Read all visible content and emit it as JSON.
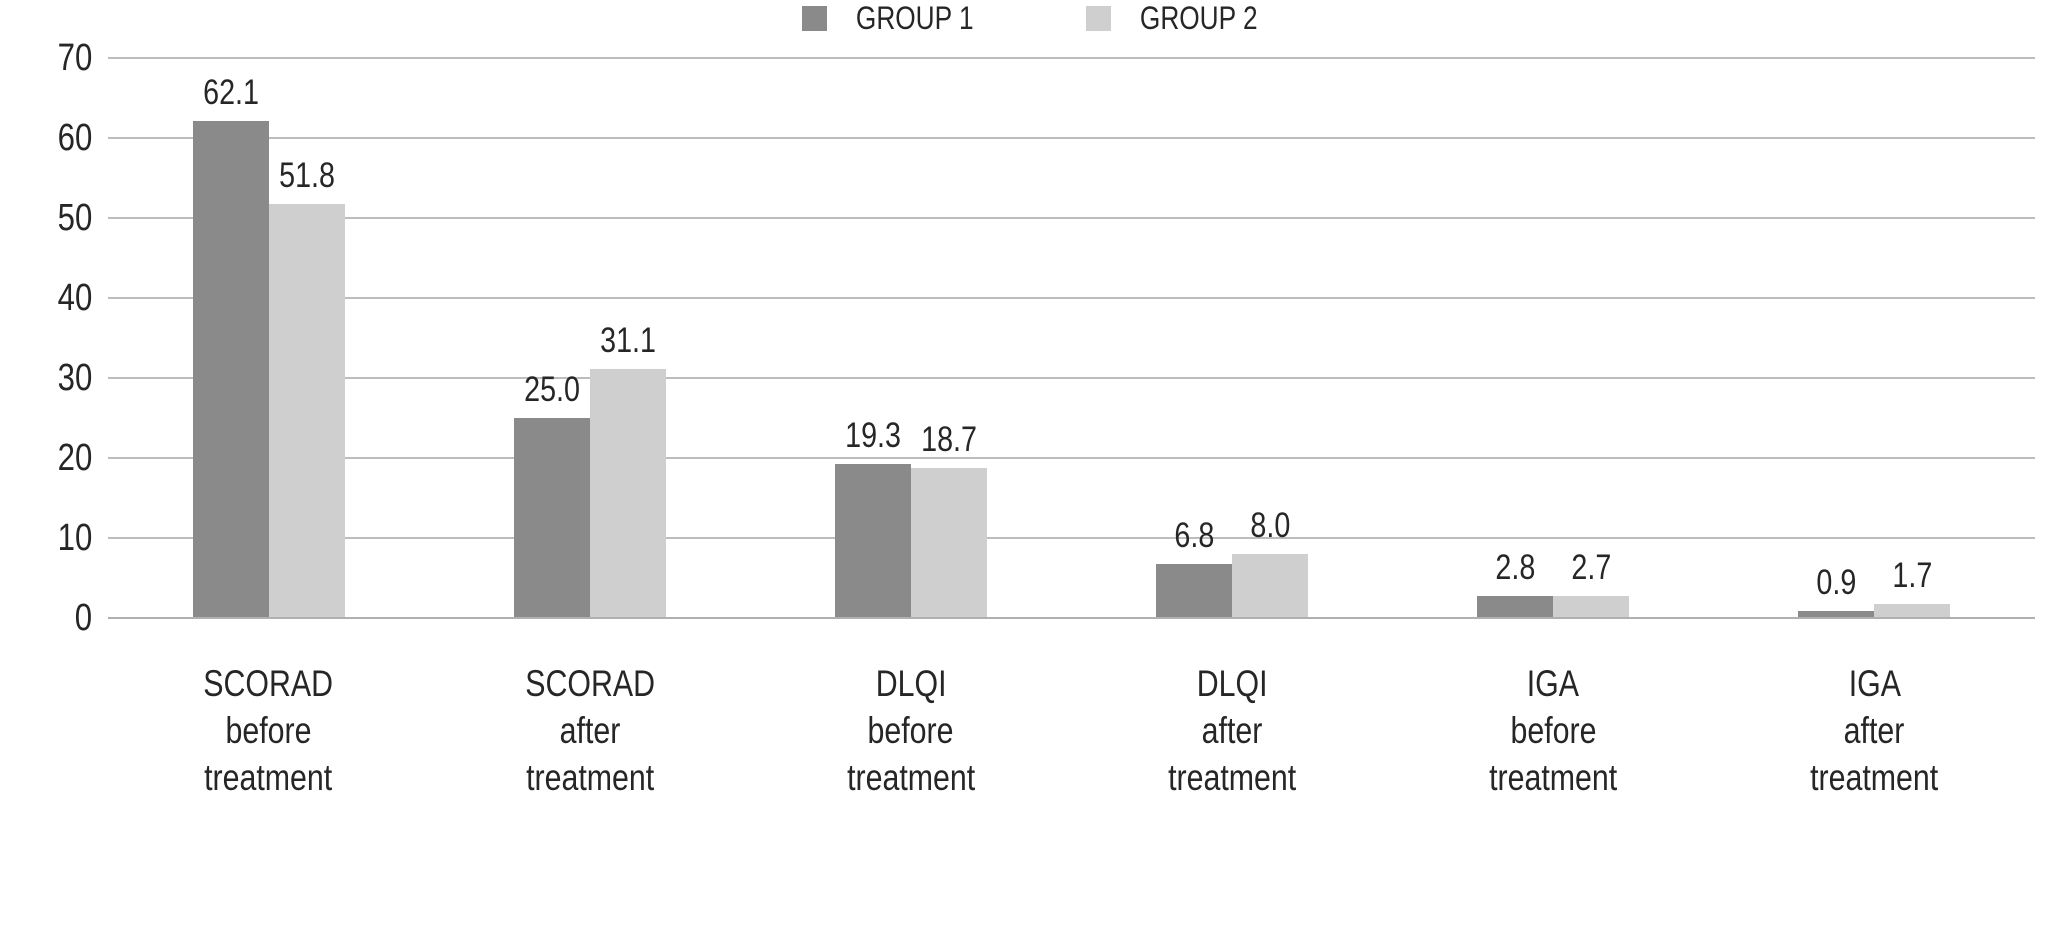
{
  "chart_data": {
    "type": "bar",
    "title": "",
    "xlabel": "",
    "ylabel": "",
    "categories": [
      [
        "SCORAD",
        "before",
        "treatment"
      ],
      [
        "SCORAD",
        "after",
        "treatment"
      ],
      [
        "DLQI",
        "before",
        "treatment"
      ],
      [
        "DLQI",
        "after",
        "treatment"
      ],
      [
        "IGA",
        "before",
        "treatment"
      ],
      [
        "IGA",
        "after",
        "treatment"
      ]
    ],
    "series": [
      {
        "name": "GROUP 1",
        "color": "#8a8a8a",
        "values": [
          62.1,
          25.0,
          19.3,
          6.8,
          2.8,
          0.9
        ],
        "labels": [
          "62.1",
          "25.0",
          "19.3",
          "6.8",
          "2.8",
          "0.9"
        ]
      },
      {
        "name": "GROUP 2",
        "color": "#cfcfcf",
        "values": [
          51.8,
          31.1,
          18.7,
          8.0,
          2.7,
          1.7
        ],
        "labels": [
          "51.8",
          "31.1",
          "18.7",
          "8.0",
          "2.7",
          "1.7"
        ]
      }
    ],
    "y_ticks": [
      70,
      60,
      50,
      40,
      30,
      20,
      10,
      0
    ],
    "ylim": [
      0,
      70
    ],
    "grid": true,
    "legend_position": "bottom"
  },
  "colors": {
    "gridline": "#bdbdbd",
    "axis": "#b0b0b0",
    "text": "#262626",
    "background": "#ffffff"
  }
}
